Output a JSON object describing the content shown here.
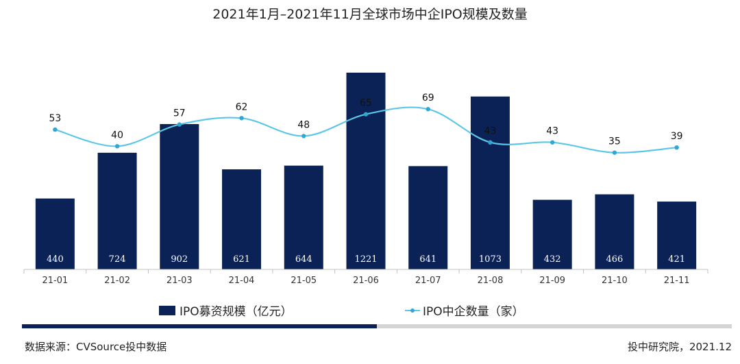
{
  "header": {
    "title": "2021年1月–2021年11月全球市场中企IPO规模及数量"
  },
  "legend": {
    "bar_label": "IPO募资规模（亿元）",
    "line_label": "IPO中企数量（家）"
  },
  "footer": {
    "source": "数据来源：CVSource投中数据",
    "credit": "投中研究院，2021.12"
  },
  "progress": {
    "fraction": 0.5
  },
  "colors": {
    "bar": "#0b2257",
    "line": "#5cc6e6",
    "marker": "#2fa8d6"
  },
  "chart_data": {
    "type": "bar",
    "title": "2021年1月–2021年11月全球市场中企IPO规模及数量",
    "categories": [
      "21-01",
      "21-02",
      "21-03",
      "21-04",
      "21-05",
      "21-06",
      "21-07",
      "21-08",
      "21-09",
      "21-10",
      "21-11"
    ],
    "series": [
      {
        "name": "IPO募资规模（亿元）",
        "type": "bar",
        "values": [
          440,
          724,
          902,
          621,
          644,
          1221,
          641,
          1073,
          432,
          466,
          421
        ]
      },
      {
        "name": "IPO中企数量（家）",
        "type": "line",
        "values": [
          53,
          40,
          57,
          62,
          48,
          65,
          69,
          43,
          43,
          35,
          39
        ]
      }
    ],
    "legend_position": "bottom",
    "grid": false
  }
}
